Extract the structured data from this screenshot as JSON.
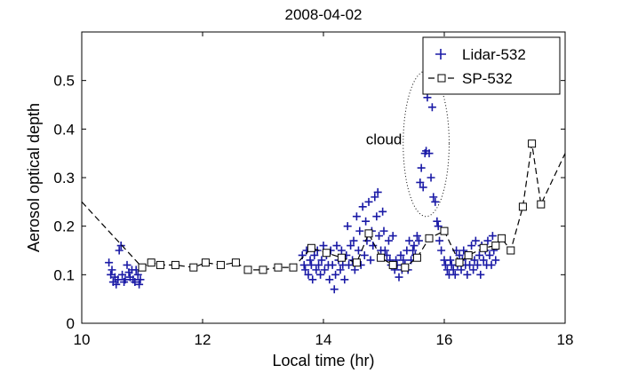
{
  "chart_data": {
    "type": "scatter",
    "title": "2008-04-02",
    "xlabel": "Local time (hr)",
    "ylabel": "Aerosol optical depth",
    "xlim": [
      10,
      18
    ],
    "ylim": [
      0,
      0.6
    ],
    "xticks": [
      10,
      12,
      14,
      16,
      18
    ],
    "yticks": [
      0,
      0.1,
      0.2,
      0.3,
      0.4,
      0.5
    ],
    "grid": false,
    "legend_position": "top-right",
    "annotation": {
      "text": "cloud",
      "x": 15.3,
      "y": 0.38
    },
    "cloud_ellipse": {
      "cx": 15.7,
      "cy": 0.37,
      "rx": 0.38,
      "ry": 0.15
    },
    "colors": {
      "lidar": "#1a1aa6",
      "sp": "#000000",
      "axis": "#000000"
    },
    "series": [
      {
        "name": "Lidar-532",
        "style": "plus-markers",
        "points": [
          [
            10.45,
            0.125
          ],
          [
            10.48,
            0.1
          ],
          [
            10.5,
            0.11
          ],
          [
            10.52,
            0.085
          ],
          [
            10.55,
            0.095
          ],
          [
            10.57,
            0.08
          ],
          [
            10.6,
            0.09
          ],
          [
            10.62,
            0.15
          ],
          [
            10.65,
            0.16
          ],
          [
            10.67,
            0.1
          ],
          [
            10.7,
            0.085
          ],
          [
            10.72,
            0.09
          ],
          [
            10.75,
            0.12
          ],
          [
            10.78,
            0.105
          ],
          [
            10.8,
            0.095
          ],
          [
            10.83,
            0.11
          ],
          [
            10.85,
            0.09
          ],
          [
            10.88,
            0.085
          ],
          [
            10.9,
            0.11
          ],
          [
            10.93,
            0.1
          ],
          [
            10.95,
            0.08
          ],
          [
            10.97,
            0.09
          ],
          [
            13.65,
            0.14
          ],
          [
            13.68,
            0.12
          ],
          [
            13.7,
            0.11
          ],
          [
            13.72,
            0.15
          ],
          [
            13.75,
            0.1
          ],
          [
            13.78,
            0.13
          ],
          [
            13.8,
            0.12
          ],
          [
            13.82,
            0.09
          ],
          [
            13.85,
            0.14
          ],
          [
            13.88,
            0.11
          ],
          [
            13.9,
            0.15
          ],
          [
            13.92,
            0.12
          ],
          [
            13.95,
            0.1
          ],
          [
            13.97,
            0.13
          ],
          [
            14.0,
            0.16
          ],
          [
            14.02,
            0.11
          ],
          [
            14.05,
            0.14
          ],
          [
            14.08,
            0.12
          ],
          [
            14.1,
            0.09
          ],
          [
            14.12,
            0.15
          ],
          [
            14.15,
            0.12
          ],
          [
            14.18,
            0.07
          ],
          [
            14.2,
            0.1
          ],
          [
            14.22,
            0.16
          ],
          [
            14.25,
            0.13
          ],
          [
            14.28,
            0.11
          ],
          [
            14.3,
            0.15
          ],
          [
            14.32,
            0.12
          ],
          [
            14.35,
            0.09
          ],
          [
            14.38,
            0.14
          ],
          [
            14.4,
            0.2
          ],
          [
            14.42,
            0.12
          ],
          [
            14.45,
            0.16
          ],
          [
            14.48,
            0.13
          ],
          [
            14.5,
            0.17
          ],
          [
            14.52,
            0.11
          ],
          [
            14.55,
            0.22
          ],
          [
            14.58,
            0.15
          ],
          [
            14.6,
            0.19
          ],
          [
            14.62,
            0.12
          ],
          [
            14.65,
            0.24
          ],
          [
            14.68,
            0.14
          ],
          [
            14.7,
            0.21
          ],
          [
            14.72,
            0.17
          ],
          [
            14.75,
            0.25
          ],
          [
            14.78,
            0.13
          ],
          [
            14.8,
            0.19
          ],
          [
            14.82,
            0.16
          ],
          [
            14.85,
            0.26
          ],
          [
            14.88,
            0.22
          ],
          [
            14.9,
            0.27
          ],
          [
            14.92,
            0.18
          ],
          [
            14.95,
            0.15
          ],
          [
            14.98,
            0.23
          ],
          [
            15.0,
            0.19
          ],
          [
            15.02,
            0.15
          ],
          [
            15.05,
            0.14
          ],
          [
            15.08,
            0.17
          ],
          [
            15.1,
            0.13
          ],
          [
            15.12,
            0.12
          ],
          [
            15.15,
            0.18
          ],
          [
            15.18,
            0.11
          ],
          [
            15.2,
            0.13
          ],
          [
            15.22,
            0.12
          ],
          [
            15.25,
            0.095
          ],
          [
            15.28,
            0.14
          ],
          [
            15.3,
            0.11
          ],
          [
            15.32,
            0.13
          ],
          [
            15.35,
            0.12
          ],
          [
            15.38,
            0.15
          ],
          [
            15.4,
            0.11
          ],
          [
            15.42,
            0.17
          ],
          [
            15.45,
            0.13
          ],
          [
            15.48,
            0.15
          ],
          [
            15.5,
            0.16
          ],
          [
            15.52,
            0.14
          ],
          [
            15.55,
            0.18
          ],
          [
            15.58,
            0.17
          ],
          [
            15.6,
            0.29
          ],
          [
            15.62,
            0.32
          ],
          [
            15.65,
            0.28
          ],
          [
            15.68,
            0.35
          ],
          [
            15.7,
            0.355
          ],
          [
            15.72,
            0.465
          ],
          [
            15.75,
            0.35
          ],
          [
            15.78,
            0.3
          ],
          [
            15.8,
            0.445
          ],
          [
            15.82,
            0.26
          ],
          [
            15.85,
            0.25
          ],
          [
            15.88,
            0.21
          ],
          [
            15.9,
            0.2
          ],
          [
            15.92,
            0.17
          ],
          [
            15.95,
            0.15
          ],
          [
            16.0,
            0.13
          ],
          [
            16.02,
            0.12
          ],
          [
            16.05,
            0.11
          ],
          [
            16.08,
            0.1
          ],
          [
            16.1,
            0.13
          ],
          [
            16.12,
            0.12
          ],
          [
            16.15,
            0.11
          ],
          [
            16.18,
            0.1
          ],
          [
            16.2,
            0.15
          ],
          [
            16.22,
            0.12
          ],
          [
            16.25,
            0.14
          ],
          [
            16.28,
            0.11
          ],
          [
            16.3,
            0.13
          ],
          [
            16.32,
            0.15
          ],
          [
            16.35,
            0.12
          ],
          [
            16.38,
            0.1
          ],
          [
            16.4,
            0.14
          ],
          [
            16.42,
            0.12
          ],
          [
            16.45,
            0.16
          ],
          [
            16.48,
            0.11
          ],
          [
            16.5,
            0.13
          ],
          [
            16.52,
            0.17
          ],
          [
            16.55,
            0.12
          ],
          [
            16.58,
            0.14
          ],
          [
            16.6,
            0.1
          ],
          [
            16.62,
            0.16
          ],
          [
            16.65,
            0.13
          ],
          [
            16.68,
            0.15
          ],
          [
            16.7,
            0.12
          ],
          [
            16.72,
            0.17
          ],
          [
            16.75,
            0.14
          ],
          [
            16.78,
            0.12
          ],
          [
            16.8,
            0.18
          ],
          [
            16.82,
            0.15
          ],
          [
            16.85,
            0.13
          ]
        ]
      },
      {
        "name": "SP-532",
        "style": "dashed-line-square-markers",
        "line_start": [
          10.0,
          0.25
        ],
        "points": [
          [
            11.0,
            0.115
          ],
          [
            11.15,
            0.125
          ],
          [
            11.3,
            0.12
          ],
          [
            11.55,
            0.12
          ],
          [
            11.85,
            0.115
          ],
          [
            12.05,
            0.125
          ],
          [
            12.3,
            0.12
          ],
          [
            12.55,
            0.125
          ],
          [
            12.75,
            0.11
          ],
          [
            13.0,
            0.11
          ],
          [
            13.25,
            0.115
          ],
          [
            13.5,
            0.115
          ],
          [
            13.8,
            0.155
          ],
          [
            14.05,
            0.145
          ],
          [
            14.3,
            0.135
          ],
          [
            14.55,
            0.125
          ],
          [
            14.75,
            0.185
          ],
          [
            14.95,
            0.135
          ],
          [
            15.15,
            0.12
          ],
          [
            15.35,
            0.115
          ],
          [
            15.55,
            0.135
          ],
          [
            15.75,
            0.175
          ],
          [
            16.0,
            0.19
          ],
          [
            16.25,
            0.125
          ],
          [
            16.4,
            0.14
          ],
          [
            16.65,
            0.155
          ],
          [
            16.85,
            0.16
          ],
          [
            16.95,
            0.175
          ],
          [
            17.1,
            0.15
          ],
          [
            17.3,
            0.24
          ],
          [
            17.45,
            0.37
          ],
          [
            17.6,
            0.245
          ]
        ],
        "line_end": [
          18.0,
          0.35
        ]
      }
    ]
  }
}
